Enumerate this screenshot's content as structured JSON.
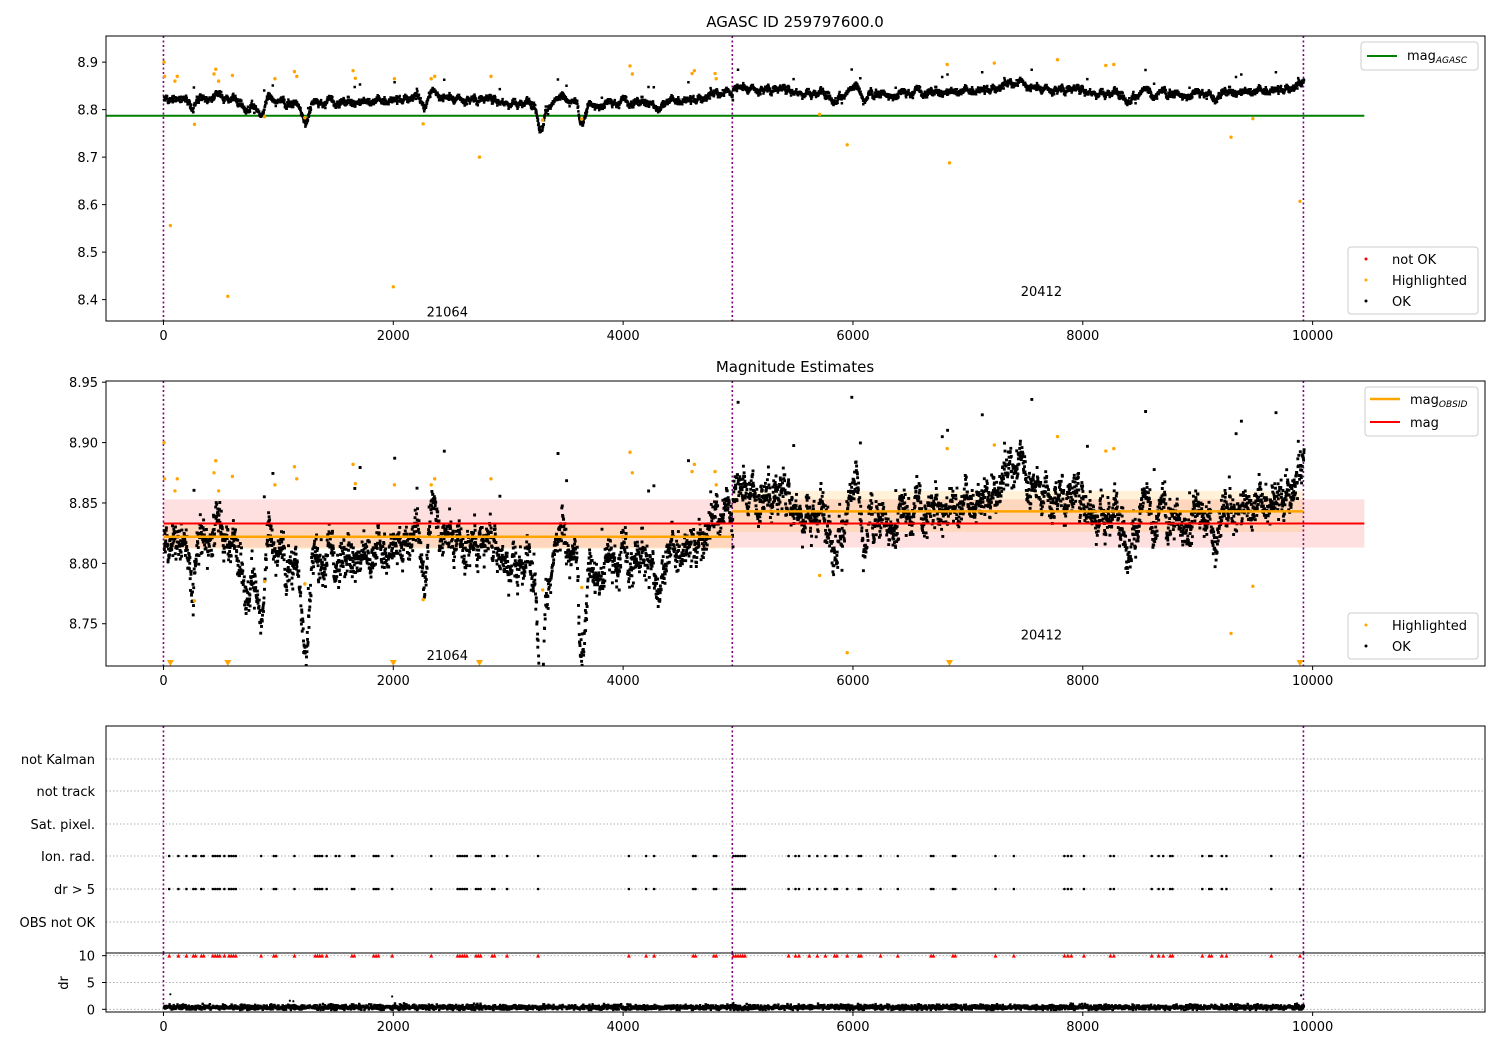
{
  "chart_data": [
    {
      "type": "scatter",
      "title": "AGASC ID 259797600.0",
      "xlim": [
        -500,
        11500
      ],
      "ylim": [
        8.355,
        8.955
      ],
      "xticks": [
        0,
        2000,
        4000,
        6000,
        8000,
        10000
      ],
      "xticklabels": [
        "0",
        "2000",
        "4000",
        "6000",
        "8000",
        "10000"
      ],
      "yticks": [
        8.4,
        8.5,
        8.6,
        8.7,
        8.8,
        8.9
      ],
      "yticklabels": [
        "8.4",
        "8.5",
        "8.6",
        "8.7",
        "8.8",
        "8.9"
      ],
      "vlines": [
        0,
        4950,
        9920
      ],
      "obsid_labels": [
        {
          "text": "21064",
          "x": 2470,
          "y": 8.375
        },
        {
          "text": "20412",
          "x": 7640,
          "y": 8.418
        }
      ],
      "mag_agasc": {
        "value": 8.787,
        "x_range": [
          -500,
          10450
        ],
        "color": "#008000"
      },
      "legend_upper": [
        {
          "label": "mag",
          "sub": "AGASC",
          "color": "#008000"
        }
      ],
      "legend_lower": [
        {
          "label": "not OK",
          "color": "#ff0000"
        },
        {
          "label": "Highlighted",
          "color": "#ffa500"
        },
        {
          "label": "OK",
          "color": "#000000"
        }
      ],
      "ok_series": {
        "segments": [
          {
            "x_start": 0,
            "x_end": 4950,
            "mean": 8.822
          },
          {
            "x_start": 4950,
            "x_end": 9920,
            "mean": 8.843
          }
        ],
        "dips": [
          {
            "x": 240,
            "depth": 0.03
          },
          {
            "x": 850,
            "depth": 0.035
          },
          {
            "x": 1230,
            "depth": 0.035
          },
          {
            "x": 2260,
            "depth": 0.03
          },
          {
            "x": 3280,
            "depth": 0.04
          },
          {
            "x": 3640,
            "depth": 0.04
          },
          {
            "x": 4300,
            "depth": 0.02
          },
          {
            "x": 6100,
            "depth": 0.02
          },
          {
            "x": 8600,
            "depth": 0.02
          },
          {
            "x": 9130,
            "depth": 0.02
          }
        ]
      },
      "highlighted_points": [
        {
          "x": 5,
          "y": 8.9
        },
        {
          "x": 10,
          "y": 8.87
        },
        {
          "x": 60,
          "y": 8.556
        },
        {
          "x": 100,
          "y": 8.86
        },
        {
          "x": 120,
          "y": 8.87
        },
        {
          "x": 270,
          "y": 8.769
        },
        {
          "x": 440,
          "y": 8.875
        },
        {
          "x": 455,
          "y": 8.885
        },
        {
          "x": 480,
          "y": 8.86
        },
        {
          "x": 560,
          "y": 8.407
        },
        {
          "x": 600,
          "y": 8.872
        },
        {
          "x": 880,
          "y": 8.785
        },
        {
          "x": 970,
          "y": 8.865
        },
        {
          "x": 1140,
          "y": 8.88
        },
        {
          "x": 1160,
          "y": 8.87
        },
        {
          "x": 1230,
          "y": 8.783
        },
        {
          "x": 1650,
          "y": 8.882
        },
        {
          "x": 1670,
          "y": 8.866
        },
        {
          "x": 2000,
          "y": 8.427
        },
        {
          "x": 2010,
          "y": 8.865
        },
        {
          "x": 2260,
          "y": 8.77
        },
        {
          "x": 2330,
          "y": 8.865
        },
        {
          "x": 2360,
          "y": 8.87
        },
        {
          "x": 2750,
          "y": 8.7
        },
        {
          "x": 2850,
          "y": 8.87
        },
        {
          "x": 3300,
          "y": 8.778
        },
        {
          "x": 3640,
          "y": 8.78
        },
        {
          "x": 4060,
          "y": 8.892
        },
        {
          "x": 4080,
          "y": 8.875
        },
        {
          "x": 4600,
          "y": 8.876
        },
        {
          "x": 4620,
          "y": 8.882
        },
        {
          "x": 4800,
          "y": 8.876
        },
        {
          "x": 4810,
          "y": 8.865
        },
        {
          "x": 5710,
          "y": 8.79
        },
        {
          "x": 5950,
          "y": 8.726
        },
        {
          "x": 6820,
          "y": 8.895
        },
        {
          "x": 6840,
          "y": 8.688
        },
        {
          "x": 7230,
          "y": 8.898
        },
        {
          "x": 7780,
          "y": 8.905
        },
        {
          "x": 8200,
          "y": 8.893
        },
        {
          "x": 8270,
          "y": 8.895
        },
        {
          "x": 9290,
          "y": 8.742
        },
        {
          "x": 9480,
          "y": 8.781
        },
        {
          "x": 9890,
          "y": 8.607
        }
      ]
    },
    {
      "type": "scatter",
      "title": "Magnitude Estimates",
      "xlim": [
        -500,
        11500
      ],
      "ylim": [
        8.715,
        8.951
      ],
      "xticks": [
        0,
        2000,
        4000,
        6000,
        8000,
        10000
      ],
      "xticklabels": [
        "0",
        "2000",
        "4000",
        "6000",
        "8000",
        "10000"
      ],
      "yticks": [
        8.75,
        8.8,
        8.85,
        8.9,
        8.95
      ],
      "yticklabels": [
        "8.75",
        "8.80",
        "8.85",
        "8.90",
        "8.95"
      ],
      "vlines": [
        0,
        4950,
        9920
      ],
      "obsid_labels": [
        {
          "text": "21064",
          "x": 2470,
          "y": 8.724
        },
        {
          "text": "20412",
          "x": 7640,
          "y": 8.741
        }
      ],
      "mag": {
        "value": 8.833,
        "band": [
          8.813,
          8.853
        ],
        "x_range": [
          0,
          10450
        ],
        "color": "#ff0000"
      },
      "mag_obsid": [
        {
          "x_start": 0,
          "x_end": 4950,
          "value": 8.822,
          "band": [
            8.812,
            8.832
          ]
        },
        {
          "x_start": 4950,
          "x_end": 9920,
          "value": 8.843,
          "band": [
            8.826,
            8.86
          ]
        }
      ],
      "legend_upper": [
        {
          "label": "mag",
          "sub": "OBSID",
          "color": "#ffa500"
        },
        {
          "label": "mag",
          "sub": "",
          "color": "#ff0000"
        }
      ],
      "legend_lower": [
        {
          "label": "Highlighted",
          "color": "#ffa500"
        },
        {
          "label": "OK",
          "color": "#000000"
        }
      ],
      "offscale_markers_x": [
        60,
        560,
        2000,
        2750,
        6840,
        9890
      ]
    },
    {
      "type": "scatter",
      "title": "",
      "xlim": [
        -500,
        11500
      ],
      "xticks": [
        0,
        2000,
        4000,
        6000,
        8000,
        10000
      ],
      "xticklabels": [
        "0",
        "2000",
        "4000",
        "6000",
        "8000",
        "10000"
      ],
      "vlines": [
        0,
        4950,
        9920
      ],
      "flag_rows": [
        "not Kalman",
        "not track",
        "Sat. pixel.",
        "Ion. rad.",
        "dr > 5",
        "OBS not OK"
      ],
      "flag_x": [
        50,
        130,
        200,
        260,
        280,
        330,
        350,
        430,
        450,
        470,
        490,
        530,
        570,
        590,
        610,
        630,
        850,
        960,
        980,
        1140,
        1320,
        1340,
        1360,
        1380,
        1420,
        1640,
        1660,
        1830,
        1850,
        1870,
        1990,
        2330,
        2560,
        2580,
        2600,
        2620,
        2640,
        2720,
        2740,
        2760,
        2860,
        2880,
        2990,
        3260,
        4050,
        4200,
        4270,
        4610,
        4630,
        4790,
        4810,
        4960,
        4980,
        5000,
        5020,
        5040,
        5060,
        5440,
        5500,
        5530,
        5620,
        5690,
        5760,
        5840,
        5860,
        5950,
        6050,
        6070,
        6240,
        6390,
        6680,
        6700,
        6870,
        6890,
        7240,
        7400,
        7840,
        7870,
        7900,
        8010,
        8240,
        8270,
        8600,
        8660,
        8700,
        8760,
        8780,
        9040,
        9100,
        9120,
        9210,
        9250,
        9640,
        9890
      ],
      "ion_rad_only_x": [
        1500,
        1530
      ],
      "dr_axis": {
        "ylabel": "dr",
        "yticks": [
          0,
          5,
          10
        ],
        "yticklabels": [
          "0",
          "5",
          "10"
        ],
        "ylim": [
          -0.5,
          10.5
        ],
        "typical_dr": 0.5,
        "outlier_color": "#ff0000"
      },
      "dr_spikes": [
        {
          "x": 60,
          "y": 2.8
        },
        {
          "x": 1100,
          "y": 1.6
        },
        {
          "x": 1130,
          "y": 1.5
        },
        {
          "x": 1990,
          "y": 2.4
        },
        {
          "x": 4960,
          "y": 1.2
        },
        {
          "x": 9900,
          "y": 2.6
        }
      ]
    }
  ]
}
